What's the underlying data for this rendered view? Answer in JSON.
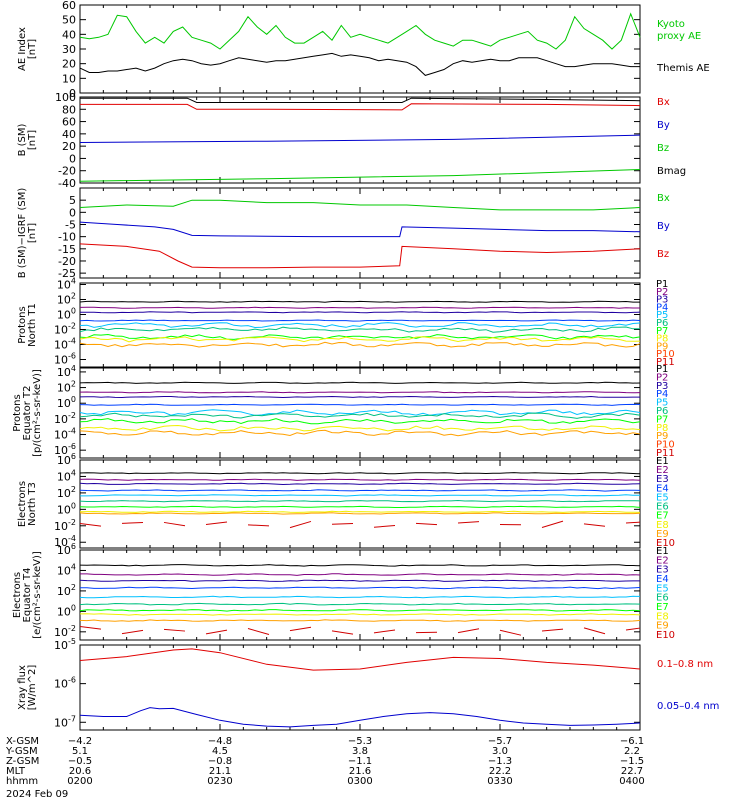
{
  "colors": {
    "black": "#000000",
    "green": "#00c800",
    "blue": "#0000cd",
    "red": "#e00000",
    "P": [
      "#000000",
      "#800080",
      "#2000a0",
      "#0040ff",
      "#00c0ff",
      "#00c080",
      "#00ff00",
      "#f0f000",
      "#ffa000",
      "#ff4000",
      "#d00000"
    ]
  },
  "chart_data": [
    {
      "type": "line",
      "id": "ae",
      "ylabel": [
        "AE Index",
        "[nT]"
      ],
      "ylim": [
        0,
        60
      ],
      "yticks": [
        0,
        10,
        20,
        30,
        40,
        50,
        60
      ],
      "x": [
        0,
        2,
        4,
        6,
        8,
        10,
        12,
        14,
        16,
        18,
        20,
        22,
        24,
        26,
        28,
        30,
        32,
        34,
        36,
        38,
        40,
        42,
        44,
        46,
        48,
        50,
        52,
        54,
        56,
        58,
        60,
        62,
        64,
        66,
        68,
        70,
        72,
        74,
        76,
        78,
        80,
        82,
        84,
        86,
        88,
        90,
        92,
        94,
        96,
        98,
        100,
        102,
        104,
        106,
        108,
        110,
        112,
        114,
        116,
        118,
        120
      ],
      "series": [
        {
          "name": "Kyoto proxy AE",
          "color": "#00c800",
          "values": [
            38,
            37,
            38,
            40,
            53,
            52,
            42,
            34,
            38,
            34,
            42,
            45,
            38,
            36,
            34,
            30,
            36,
            42,
            52,
            45,
            40,
            46,
            38,
            34,
            34,
            38,
            42,
            36,
            46,
            38,
            40,
            38,
            36,
            34,
            38,
            42,
            46,
            40,
            36,
            34,
            32,
            36,
            36,
            34,
            32,
            36,
            38,
            40,
            42,
            36,
            34,
            30,
            36,
            52,
            44,
            40,
            36,
            30,
            36,
            54,
            38
          ]
        },
        {
          "name": "Themis AE",
          "color": "#000000",
          "values": [
            17,
            14,
            14,
            15,
            15,
            16,
            17,
            15,
            17,
            20,
            22,
            23,
            22,
            20,
            19,
            20,
            22,
            24,
            23,
            22,
            21,
            22,
            22,
            23,
            24,
            25,
            26,
            27,
            25,
            26,
            25,
            24,
            22,
            23,
            22,
            21,
            18,
            12,
            14,
            16,
            20,
            22,
            21,
            22,
            23,
            22,
            22,
            24,
            24,
            24,
            22,
            20,
            18,
            18,
            19,
            20,
            20,
            20,
            19,
            18,
            18
          ]
        }
      ]
    },
    {
      "type": "line",
      "id": "bsm",
      "ylabel": [
        "B (SM)",
        "[nT]"
      ],
      "ylim": [
        -40,
        100
      ],
      "yticks": [
        -40,
        -20,
        0,
        20,
        40,
        60,
        80,
        100
      ],
      "series": [
        {
          "name": "Bmag",
          "color": "#000000",
          "x": [
            0,
            23,
            25,
            40,
            69,
            71,
            100,
            120
          ],
          "values": [
            98,
            98,
            91,
            91,
            91,
            98,
            96,
            94
          ]
        },
        {
          "name": "Bx",
          "color": "#e00000",
          "x": [
            0,
            23,
            25,
            40,
            69,
            71,
            100,
            120
          ],
          "values": [
            88,
            88,
            80,
            80,
            79,
            89,
            88,
            86
          ]
        },
        {
          "name": "By",
          "color": "#0000cd",
          "x": [
            0,
            40,
            80,
            120
          ],
          "values": [
            26,
            28,
            31,
            38
          ]
        },
        {
          "name": "Bz",
          "color": "#00c800",
          "x": [
            0,
            40,
            80,
            120
          ],
          "values": [
            -37,
            -33,
            -28,
            -18
          ]
        }
      ]
    },
    {
      "type": "line",
      "id": "bigrf",
      "ylabel": [
        "B (SM)−IGRF (SM)",
        "[nT]"
      ],
      "ylim": [
        -27,
        10
      ],
      "yticks": [
        -25,
        -20,
        -15,
        -10,
        -5,
        0,
        5
      ],
      "series": [
        {
          "name": "Bx",
          "color": "#00c800",
          "x": [
            0,
            10,
            20,
            24,
            30,
            40,
            50,
            60,
            70,
            80,
            90,
            100,
            110,
            120
          ],
          "values": [
            2,
            3,
            2.5,
            5,
            5,
            4,
            4,
            3,
            3,
            2,
            1,
            1,
            1,
            2
          ]
        },
        {
          "name": "By",
          "color": "#0000cd",
          "x": [
            0,
            8,
            16,
            20,
            24,
            30,
            40,
            50,
            60,
            68.5,
            69,
            80,
            90,
            100,
            110,
            120
          ],
          "values": [
            -4,
            -5,
            -6,
            -7,
            -9.5,
            -9.7,
            -9.8,
            -10,
            -10,
            -10,
            -6,
            -6.5,
            -7,
            -7.5,
            -7.5,
            -8
          ]
        },
        {
          "name": "Bz",
          "color": "#e00000",
          "x": [
            0,
            10,
            17,
            21,
            24,
            30,
            40,
            50,
            60,
            68.5,
            69,
            80,
            90,
            100,
            110,
            120
          ],
          "values": [
            -13,
            -14,
            -16,
            -20,
            -22.5,
            -22.8,
            -22.8,
            -22.5,
            -22.5,
            -22,
            -14,
            -15,
            -16,
            -16.5,
            -16,
            -15
          ]
        }
      ]
    },
    {
      "type": "line",
      "id": "pn1",
      "log": true,
      "ylabel": [
        "Protons",
        "North T1"
      ],
      "ylim": [
        -7,
        4.2
      ],
      "yticks": [
        -6,
        -4,
        -2,
        0,
        2,
        4
      ],
      "series": [
        {
          "name": "P1",
          "color": "#000000",
          "level": 1.7
        },
        {
          "name": "P2",
          "color": "#800080",
          "level": 0.9
        },
        {
          "name": "P3",
          "color": "#2000a0",
          "level": 0.3
        },
        {
          "name": "P4",
          "color": "#0040ff",
          "level": -0.8
        },
        {
          "name": "P5",
          "color": "#00c0ff",
          "level": -1.4
        },
        {
          "name": "P6",
          "color": "#00c080",
          "level": -2.0
        },
        {
          "name": "P7",
          "color": "#00ff00",
          "level": -3.0
        },
        {
          "name": "P8",
          "color": "#f0f000",
          "level": -3.3
        },
        {
          "name": "P9",
          "color": "#ffa000",
          "level": -4.0
        },
        {
          "name": "P10",
          "color": "#ff4000"
        },
        {
          "name": "P11",
          "color": "#d00000"
        }
      ]
    },
    {
      "type": "line",
      "id": "pe2",
      "log": true,
      "ylabel": [
        "Protons",
        "Equator T2",
        "[p/(cm²-s-sr-keV)]"
      ],
      "ylim": [
        -7,
        4.5
      ],
      "yticks": [
        -6,
        -4,
        -2,
        0,
        2,
        4
      ],
      "series": [
        {
          "name": "P1",
          "color": "#000000",
          "level": 2.6
        },
        {
          "name": "P2",
          "color": "#800080",
          "level": 1.4
        },
        {
          "name": "P3",
          "color": "#2000a0",
          "level": 0.8
        },
        {
          "name": "P4",
          "color": "#0040ff",
          "level": -0.2
        },
        {
          "name": "P5",
          "color": "#00c0ff",
          "level": -1.2
        },
        {
          "name": "P6",
          "color": "#00c080",
          "level": -1.6
        },
        {
          "name": "P7",
          "color": "#00ff00",
          "level": -2.3
        },
        {
          "name": "P8",
          "color": "#f0f000",
          "level": -3.2
        },
        {
          "name": "P9",
          "color": "#ffa000",
          "level": -3.8
        },
        {
          "name": "P10",
          "color": "#ff4000"
        },
        {
          "name": "P11",
          "color": "#d00000"
        }
      ]
    },
    {
      "type": "line",
      "id": "en3",
      "log": true,
      "ylabel": [
        "Electrons",
        "North T3"
      ],
      "ylim": [
        -4.7,
        6
      ],
      "yticks": [
        -4,
        -2,
        0,
        2,
        4,
        6
      ],
      "series": [
        {
          "name": "E1",
          "color": "#000000",
          "level": 4.4
        },
        {
          "name": "E2",
          "color": "#800080",
          "level": 3.6
        },
        {
          "name": "E3",
          "color": "#2000a0",
          "level": 3.1
        },
        {
          "name": "E4",
          "color": "#0040ff",
          "level": 2.3
        },
        {
          "name": "E5",
          "color": "#00c0ff",
          "level": 1.7
        },
        {
          "name": "E6",
          "color": "#00c080",
          "level": 1.0
        },
        {
          "name": "E7",
          "color": "#00ff00",
          "level": 0.3
        },
        {
          "name": "E8",
          "color": "#f0f000",
          "level": -0.3
        },
        {
          "name": "E9",
          "color": "#ffa000",
          "level": -0.5
        },
        {
          "name": "E10",
          "color": "#d00000",
          "level": -1.8
        }
      ]
    },
    {
      "type": "line",
      "id": "ee4",
      "log": true,
      "ylabel": [
        "Electrons",
        "Equator T4",
        "[e/(cm²-s-sr-keV)]"
      ],
      "ylim": [
        -2.8,
        6
      ],
      "yticks": [
        -2,
        0,
        2,
        4,
        6
      ],
      "series": [
        {
          "name": "E1",
          "color": "#000000",
          "level": 4.5
        },
        {
          "name": "E2",
          "color": "#800080",
          "level": 3.6
        },
        {
          "name": "E3",
          "color": "#2000a0",
          "level": 3.0
        },
        {
          "name": "E4",
          "color": "#0040ff",
          "level": 2.3
        },
        {
          "name": "E5",
          "color": "#00c0ff",
          "level": 1.4
        },
        {
          "name": "E6",
          "color": "#00c080",
          "level": 0.7
        },
        {
          "name": "E7",
          "color": "#00ff00",
          "level": 0.1
        },
        {
          "name": "E8",
          "color": "#f0f000",
          "level": -0.3
        },
        {
          "name": "E9",
          "color": "#ffa000",
          "level": -0.9
        },
        {
          "name": "E10",
          "color": "#d00000",
          "level": -1.9
        }
      ]
    },
    {
      "type": "line",
      "id": "xray",
      "log": true,
      "ylabel": [
        "Xray flux",
        "[W/m^2]"
      ],
      "ylim": [
        -7.2,
        -5.0
      ],
      "yticks": [
        -7,
        -6,
        -5
      ],
      "series": [
        {
          "name": "0.1–0.8 nm",
          "color": "#e00000",
          "x": [
            0,
            10,
            20,
            24,
            30,
            40,
            50,
            60,
            70,
            80,
            90,
            100,
            110,
            120
          ],
          "values": [
            -5.4,
            -5.3,
            -5.13,
            -5.1,
            -5.2,
            -5.5,
            -5.65,
            -5.62,
            -5.45,
            -5.32,
            -5.35,
            -5.45,
            -5.52,
            -5.62
          ]
        },
        {
          "name": "0.05–0.4 nm",
          "color": "#0000cd",
          "x": [
            0,
            5,
            10,
            13,
            15,
            17,
            20,
            25,
            30,
            35,
            40,
            45,
            50,
            55,
            60,
            65,
            70,
            75,
            80,
            85,
            90,
            95,
            100,
            105,
            110,
            115,
            120
          ],
          "values": [
            -6.82,
            -6.85,
            -6.85,
            -6.7,
            -6.62,
            -6.65,
            -6.64,
            -6.8,
            -6.95,
            -7.05,
            -7.1,
            -7.12,
            -7.08,
            -7.05,
            -6.95,
            -6.85,
            -6.78,
            -6.75,
            -6.78,
            -6.85,
            -6.95,
            -7.02,
            -7.05,
            -7.08,
            -7.07,
            -7.05,
            -7.02
          ]
        }
      ]
    }
  ],
  "footer": {
    "rows": [
      {
        "label": "X-GSM",
        "values": [
          "−4.2",
          "−4.8",
          "−5.3",
          "−5.7",
          "−6.1"
        ]
      },
      {
        "label": "Y-GSM",
        "values": [
          "5.1",
          "4.5",
          "3.8",
          "3.0",
          "2.2"
        ]
      },
      {
        "label": "Z-GSM",
        "values": [
          "−0.5",
          "−0.8",
          "−1.1",
          "−1.3",
          "−1.5"
        ]
      },
      {
        "label": "MLT",
        "values": [
          "20.6",
          "21.1",
          "21.6",
          "22.2",
          "22.7"
        ]
      },
      {
        "label": "hhmm",
        "values": [
          "0200",
          "0230",
          "0300",
          "0330",
          "0400"
        ]
      }
    ],
    "date": "2024 Feb 09"
  }
}
